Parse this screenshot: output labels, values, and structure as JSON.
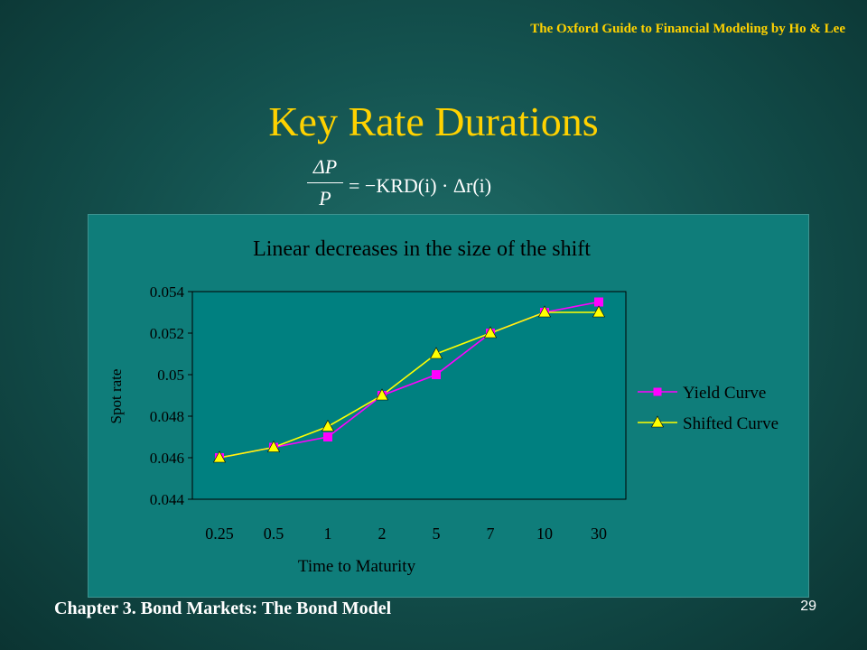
{
  "header": {
    "text": "The Oxford Guide to Financial Modeling by Ho & Lee"
  },
  "slide": {
    "title": "Key Rate Durations",
    "formula": {
      "numerator": "ΔP",
      "denominator": "P",
      "rhs": "= −KRD(i) · Δr(i)"
    }
  },
  "chart_data": {
    "type": "line",
    "title": "Linear decreases in the size of the shift",
    "xlabel": "Time to Maturity",
    "ylabel": "Spot rate",
    "categories": [
      "0.25",
      "0.5",
      "1",
      "2",
      "5",
      "7",
      "10",
      "30"
    ],
    "ylim": [
      0.044,
      0.054
    ],
    "yticks": [
      0.044,
      0.046,
      0.048,
      0.05,
      0.052,
      0.054
    ],
    "ytick_labels": [
      "0.044",
      "0.046",
      "0.048",
      "0.05",
      "0.052",
      "0.054"
    ],
    "grid": false,
    "legend": "right",
    "series": [
      {
        "name": "Yield Curve",
        "color": "#ff00ff",
        "marker": "square",
        "values": [
          0.046,
          0.0465,
          0.047,
          0.049,
          0.05,
          0.052,
          0.053,
          0.0535
        ]
      },
      {
        "name": "Shifted Curve",
        "color": "#ffff00",
        "marker": "triangle",
        "values": [
          0.046,
          0.0465,
          0.0475,
          0.049,
          0.051,
          0.052,
          0.053,
          0.053
        ]
      }
    ]
  },
  "colors": {
    "accent": "#ffd200",
    "plot_bg": "#008080",
    "panel_bg": "#0f7d7a"
  },
  "footer": {
    "chapter": "Chapter 3. Bond Markets: The Bond Model",
    "page": "29"
  }
}
